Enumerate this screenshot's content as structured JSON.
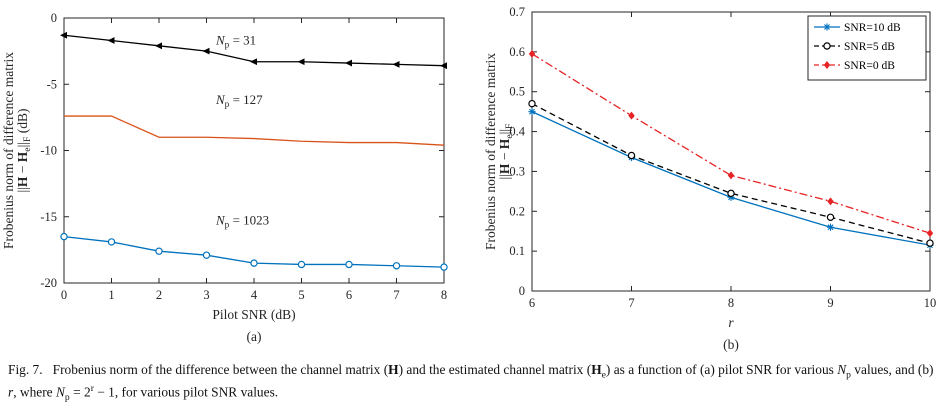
{
  "figure": {
    "caption_rich": "Fig. 7.   Frobenius norm of the difference between the channel matrix (**H**) and the estimated channel matrix (**H**_{e}) as a function of (a) pilot SNR for various *N*_{p} values, and (b) *r*, where *N*_{p} = 2^{r} − 1, for various pilot SNR values."
  },
  "colors": {
    "axis": "#262626",
    "blue": "#0072BD",
    "orange": "#D95319",
    "red": "#E62325",
    "black": "#000000"
  },
  "chart_data": [
    {
      "type": "line",
      "sublabel": "(a)",
      "xlabel": "Pilot SNR (dB)",
      "ylabel_lines": [
        "Frobenius norm of difference matrix",
        "||**H** − **H**_{e}||_{F} (dB)"
      ],
      "xlim": [
        0,
        8
      ],
      "ylim": [
        -20,
        0
      ],
      "xticks": [
        0,
        1,
        2,
        3,
        4,
        5,
        6,
        7,
        8
      ],
      "yticks": [
        0,
        -5,
        -10,
        -15,
        -20
      ],
      "x": [
        0,
        1,
        2,
        3,
        4,
        5,
        6,
        7,
        8
      ],
      "grid": false,
      "legend": null,
      "series": [
        {
          "name": "Np = 31",
          "label_rich": "*N*_{p} = 31",
          "color": "#000000",
          "marker": "triangle-left",
          "dash": "solid",
          "values": [
            -1.3,
            -1.7,
            -2.1,
            -2.5,
            -3.3,
            -3.3,
            -3.4,
            -3.5,
            -3.6
          ],
          "annotation": {
            "x": 3.2,
            "y": -2.0
          }
        },
        {
          "name": "Np = 127",
          "label_rich": "*N*_{p} = 127",
          "color": "#D95319",
          "marker": "none",
          "dash": "solid",
          "values": [
            -7.4,
            -7.4,
            -9.0,
            -9.0,
            -9.1,
            -9.3,
            -9.4,
            -9.4,
            -9.6
          ],
          "annotation": {
            "x": 3.2,
            "y": -6.5
          }
        },
        {
          "name": "Np = 1023",
          "label_rich": "*N*_{p} = 1023",
          "color": "#0072BD",
          "marker": "circle-open",
          "dash": "solid",
          "values": [
            -16.5,
            -16.9,
            -17.6,
            -17.9,
            -18.5,
            -18.6,
            -18.6,
            -18.7,
            -18.8
          ],
          "annotation": {
            "x": 3.2,
            "y": -15.6
          }
        }
      ]
    },
    {
      "type": "line",
      "sublabel": "(b)",
      "xlabel_rich": "*r*",
      "ylabel_lines": [
        "Frobenius norm of difference matrix",
        "||**H** − **H**_{e}||_{F}"
      ],
      "xlim": [
        6,
        10
      ],
      "ylim": [
        0,
        0.7
      ],
      "xticks": [
        6,
        7,
        8,
        9,
        10
      ],
      "yticks": [
        0,
        0.1,
        0.2,
        0.3,
        0.4,
        0.5,
        0.6,
        0.7
      ],
      "x": [
        6,
        7,
        8,
        9,
        10
      ],
      "grid": false,
      "legend": {
        "position": "top-right"
      },
      "series": [
        {
          "name": "SNR=10 dB",
          "color": "#0072BD",
          "marker": "asterisk",
          "dash": "solid",
          "values": [
            0.45,
            0.335,
            0.235,
            0.16,
            0.115
          ]
        },
        {
          "name": "SNR=5 dB",
          "color": "#000000",
          "marker": "circle-open",
          "dash": "dashed",
          "values": [
            0.47,
            0.34,
            0.245,
            0.185,
            0.12
          ]
        },
        {
          "name": "SNR=0 dB",
          "color": "#E62325",
          "marker": "diamond",
          "dash": "dashdot",
          "values": [
            0.595,
            0.44,
            0.29,
            0.225,
            0.145
          ]
        }
      ]
    }
  ]
}
